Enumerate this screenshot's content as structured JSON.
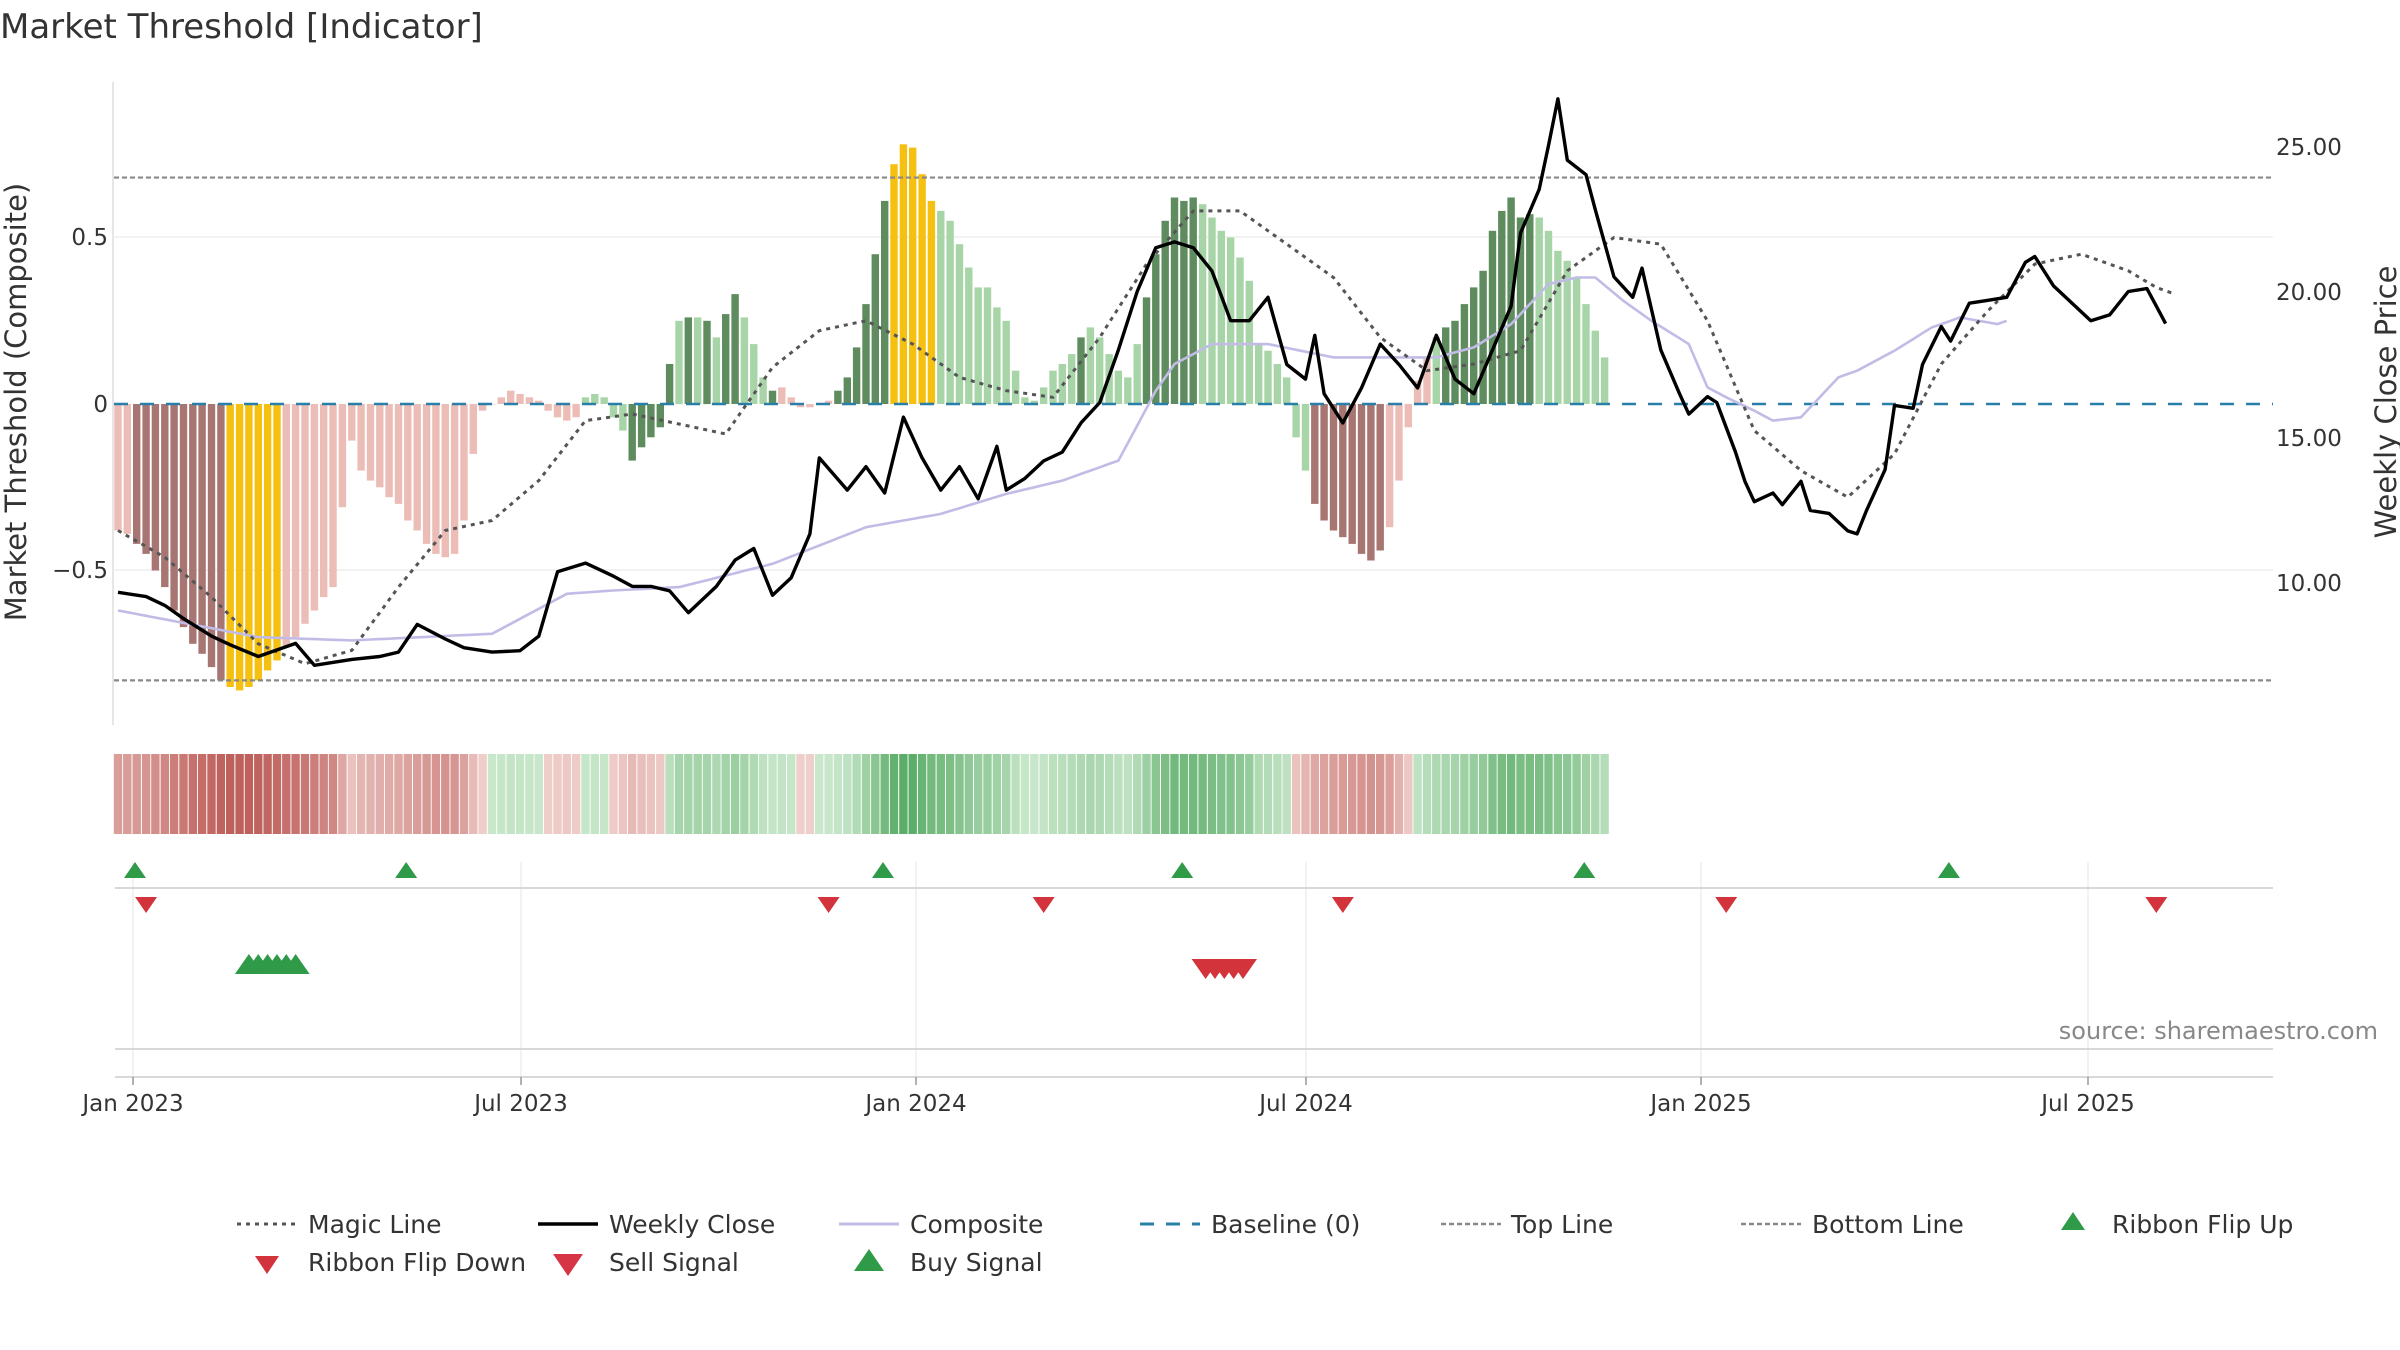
{
  "chart_data": {
    "type": "bar",
    "title": "Market Threshold [Indicator]",
    "ylabel_left": "Market Threshold (Composite)",
    "ylabel_right": "Weekly Close Price",
    "source": "source: sharemaestro.com",
    "x_tick_labels": [
      "Jan 2023",
      "Jul 2023",
      "Jan 2024",
      "Jul 2024",
      "Jan 2025",
      "Jul 2025"
    ],
    "left_tick_labels": [
      "0.5",
      "0",
      "−0.5"
    ],
    "right_tick_labels": [
      "25.00",
      "20.00",
      "15.00",
      "10.00"
    ],
    "ylim_left": [
      -0.97,
      0.97
    ],
    "ylim_right": [
      5.0,
      27.3
    ],
    "top_line": 0.68,
    "bottom_line": -0.83,
    "baseline": 0,
    "colors": {
      "strong_up": "#5e8c5e",
      "weak_up": "#a8d5a8",
      "strong_down": "#a77572",
      "weak_down": "#ecbdb7",
      "extreme": "#f5c010",
      "close_line": "#000000",
      "composite_line": "#c1bce6",
      "magic_line": "#555555",
      "baseline": "#2a7fa8",
      "threshold_lines": "#888888",
      "buy_marker": "#2f9a48",
      "sell_marker": "#d3343c"
    },
    "bar_values": [
      -0.38,
      -0.39,
      -0.42,
      -0.45,
      -0.5,
      -0.55,
      -0.62,
      -0.67,
      -0.72,
      -0.75,
      -0.79,
      -0.83,
      -0.85,
      -0.86,
      -0.85,
      -0.83,
      -0.8,
      -0.77,
      -0.73,
      -0.7,
      -0.66,
      -0.62,
      -0.58,
      -0.55,
      -0.31,
      -0.11,
      -0.2,
      -0.23,
      -0.25,
      -0.28,
      -0.3,
      -0.35,
      -0.38,
      -0.42,
      -0.45,
      -0.46,
      -0.45,
      -0.35,
      -0.15,
      -0.02,
      0,
      0.02,
      0.04,
      0.03,
      0.02,
      0.01,
      -0.02,
      -0.04,
      -0.05,
      -0.04,
      0.02,
      0.03,
      0.02,
      -0.04,
      -0.08,
      -0.17,
      -0.13,
      -0.1,
      -0.07,
      0.12,
      0.25,
      0.26,
      0.26,
      0.25,
      0.2,
      0.27,
      0.33,
      0.26,
      0.18,
      0.08,
      0.04,
      0.05,
      0.02,
      -0.01,
      -0.01,
      0,
      0.01,
      0.04,
      0.08,
      0.17,
      0.3,
      0.45,
      0.61,
      0.72,
      0.78,
      0.77,
      0.69,
      0.61,
      0.58,
      0.55,
      0.48,
      0.41,
      0.35,
      0.35,
      0.29,
      0.25,
      0.1,
      0.02,
      0.01,
      0.05,
      0.1,
      0.12,
      0.15,
      0.2,
      0.23,
      0.2,
      0.15,
      0.1,
      0.08,
      0.18,
      0.32,
      0.45,
      0.55,
      0.62,
      0.61,
      0.62,
      0.6,
      0.56,
      0.52,
      0.5,
      0.44,
      0.37,
      0.18,
      0.16,
      0.12,
      0.08,
      -0.1,
      -0.2,
      -0.3,
      -0.35,
      -0.38,
      -0.4,
      -0.42,
      -0.45,
      -0.47,
      -0.44,
      -0.37,
      -0.23,
      -0.07,
      0.07,
      0.14,
      0.2,
      0.23,
      0.25,
      0.3,
      0.35,
      0.4,
      0.52,
      0.58,
      0.62,
      0.56,
      0.57,
      0.56,
      0.52,
      0.46,
      0.43,
      0.38,
      0.3,
      0.22,
      0.14
    ],
    "bar_color_classes": [
      "weak_down",
      "weak_down",
      "strong_down",
      "strong_down",
      "strong_down",
      "strong_down",
      "strong_down",
      "strong_down",
      "strong_down",
      "strong_down",
      "strong_down",
      "strong_down",
      "extreme",
      "extreme",
      "extreme",
      "extreme",
      "extreme",
      "extreme",
      "weak_down",
      "weak_down",
      "weak_down",
      "weak_down",
      "weak_down",
      "weak_down",
      "weak_down",
      "weak_down",
      "weak_down",
      "weak_down",
      "weak_down",
      "weak_down",
      "weak_down",
      "weak_down",
      "weak_down",
      "weak_down",
      "weak_down",
      "weak_down",
      "weak_down",
      "weak_down",
      "weak_down",
      "weak_down",
      "weak_down",
      "weak_down",
      "weak_down",
      "weak_down",
      "weak_down",
      "weak_down",
      "weak_down",
      "weak_down",
      "weak_down",
      "weak_down",
      "weak_up",
      "weak_up",
      "weak_up",
      "weak_up",
      "weak_up",
      "strong_up",
      "strong_up",
      "strong_up",
      "strong_up",
      "strong_up",
      "weak_up",
      "strong_up",
      "weak_up",
      "strong_up",
      "weak_up",
      "strong_up",
      "strong_up",
      "weak_up",
      "weak_up",
      "weak_up",
      "strong_up",
      "weak_down",
      "weak_down",
      "weak_down",
      "weak_down",
      "weak_down",
      "weak_down",
      "strong_up",
      "strong_up",
      "strong_up",
      "strong_up",
      "strong_up",
      "strong_up",
      "extreme",
      "extreme",
      "extreme",
      "extreme",
      "extreme",
      "weak_up",
      "weak_up",
      "weak_up",
      "weak_up",
      "weak_up",
      "weak_up",
      "weak_up",
      "weak_up",
      "weak_up",
      "weak_up",
      "weak_up",
      "weak_up",
      "weak_up",
      "weak_up",
      "weak_up",
      "strong_up",
      "weak_up",
      "weak_up",
      "weak_up",
      "weak_up",
      "weak_up",
      "weak_up",
      "strong_up",
      "strong_up",
      "strong_up",
      "strong_up",
      "strong_up",
      "strong_up",
      "weak_up",
      "weak_up",
      "weak_up",
      "weak_up",
      "weak_up",
      "weak_up",
      "weak_up",
      "weak_up",
      "weak_up",
      "weak_up",
      "weak_up",
      "weak_up",
      "strong_down",
      "strong_down",
      "strong_down",
      "strong_down",
      "strong_down",
      "strong_down",
      "strong_down",
      "strong_down",
      "weak_down",
      "weak_down",
      "weak_down",
      "weak_down",
      "weak_down",
      "weak_up",
      "strong_up",
      "strong_up",
      "strong_up",
      "strong_up",
      "strong_up",
      "strong_up",
      "strong_up",
      "strong_up",
      "strong_up",
      "strong_up",
      "weak_up",
      "weak_up",
      "weak_up",
      "weak_up",
      "weak_up",
      "weak_up",
      "weak_up",
      "weak_up",
      "weak_up",
      "weak_up",
      "weak_up",
      "weak_up",
      "weak_up"
    ],
    "close_keypoints": [
      [
        0,
        9.7
      ],
      [
        3,
        9.55
      ],
      [
        5,
        9.25
      ],
      [
        7,
        8.8
      ],
      [
        10,
        8.2
      ],
      [
        12,
        7.9
      ],
      [
        15,
        7.5
      ],
      [
        19,
        7.95
      ],
      [
        21,
        7.2
      ],
      [
        25,
        7.4
      ],
      [
        28,
        7.5
      ],
      [
        30,
        7.65
      ],
      [
        32,
        8.6
      ],
      [
        35,
        8.1
      ],
      [
        37,
        7.8
      ],
      [
        40,
        7.65
      ],
      [
        43,
        7.7
      ],
      [
        45,
        8.2
      ],
      [
        47,
        10.4
      ],
      [
        50,
        10.7
      ],
      [
        52,
        10.4
      ],
      [
        53,
        10.25
      ],
      [
        55,
        9.9
      ],
      [
        57,
        9.9
      ],
      [
        59,
        9.75
      ],
      [
        61,
        9.0
      ],
      [
        64,
        9.9
      ],
      [
        66,
        10.8
      ],
      [
        68,
        11.2
      ],
      [
        70,
        9.6
      ],
      [
        72,
        10.2
      ],
      [
        74,
        11.7
      ],
      [
        75,
        14.3
      ],
      [
        78,
        13.2
      ],
      [
        80,
        14.0
      ],
      [
        82,
        13.1
      ],
      [
        84,
        15.7
      ],
      [
        86,
        14.3
      ],
      [
        88,
        13.2
      ],
      [
        90,
        14.0
      ],
      [
        92,
        12.9
      ],
      [
        94,
        14.7
      ],
      [
        95,
        13.2
      ],
      [
        97,
        13.6
      ],
      [
        99,
        14.2
      ],
      [
        101,
        14.5
      ],
      [
        103,
        15.5
      ],
      [
        105,
        16.2
      ],
      [
        107,
        18.0
      ],
      [
        109,
        20.0
      ],
      [
        111,
        21.5
      ],
      [
        113,
        21.7
      ],
      [
        115,
        21.5
      ],
      [
        117,
        20.7
      ],
      [
        119,
        19.0
      ],
      [
        121,
        19.0
      ],
      [
        123,
        19.8
      ],
      [
        125,
        17.5
      ],
      [
        127,
        17.0
      ],
      [
        128,
        18.5
      ],
      [
        129,
        16.5
      ],
      [
        131,
        15.5
      ],
      [
        133,
        16.7
      ],
      [
        135,
        18.2
      ],
      [
        137,
        17.5
      ],
      [
        139,
        16.7
      ],
      [
        141,
        18.5
      ],
      [
        143,
        17.0
      ],
      [
        145,
        16.5
      ],
      [
        147,
        18.0
      ],
      [
        149,
        19.5
      ],
      [
        150,
        22.0
      ],
      [
        152,
        23.5
      ],
      [
        153,
        25.0
      ],
      [
        154,
        26.6
      ],
      [
        155,
        24.5
      ],
      [
        157,
        24.0
      ],
      [
        158,
        22.8
      ],
      [
        160,
        20.5
      ],
      [
        162,
        19.8
      ],
      [
        163,
        20.8
      ],
      [
        164,
        19.4
      ],
      [
        165,
        18.0
      ],
      [
        167,
        16.5
      ],
      [
        168,
        15.8
      ],
      [
        170,
        16.4
      ],
      [
        171,
        16.2
      ],
      [
        173,
        14.5
      ],
      [
        174,
        13.5
      ],
      [
        175,
        12.8
      ],
      [
        177,
        13.1
      ],
      [
        178,
        12.7
      ],
      [
        180,
        13.5
      ],
      [
        181,
        12.5
      ],
      [
        183,
        12.4
      ],
      [
        185,
        11.8
      ],
      [
        186,
        11.7
      ],
      [
        187,
        12.5
      ],
      [
        189,
        13.9
      ],
      [
        190,
        16.1
      ],
      [
        192,
        16.0
      ],
      [
        193,
        17.5
      ],
      [
        195,
        18.8
      ],
      [
        196,
        18.3
      ],
      [
        198,
        19.6
      ],
      [
        200,
        19.7
      ],
      [
        202,
        19.8
      ],
      [
        204,
        21.0
      ],
      [
        205,
        21.2
      ],
      [
        207,
        20.2
      ],
      [
        209,
        19.6
      ],
      [
        211,
        19.0
      ],
      [
        213,
        19.2
      ],
      [
        215,
        20.0
      ],
      [
        217,
        20.1
      ],
      [
        218,
        19.5
      ],
      [
        219,
        18.9
      ]
    ],
    "composite_keypoints": [
      [
        0,
        -0.62
      ],
      [
        15,
        -0.7
      ],
      [
        25,
        -0.71
      ],
      [
        40,
        -0.69
      ],
      [
        48,
        -0.57
      ],
      [
        53,
        -0.56
      ],
      [
        60,
        -0.55
      ],
      [
        70,
        -0.48
      ],
      [
        80,
        -0.37
      ],
      [
        88,
        -0.33
      ],
      [
        95,
        -0.27
      ],
      [
        101,
        -0.23
      ],
      [
        107,
        -0.17
      ],
      [
        111,
        0.04
      ],
      [
        113,
        0.12
      ],
      [
        117,
        0.18
      ],
      [
        123,
        0.18
      ],
      [
        130,
        0.14
      ],
      [
        137,
        0.14
      ],
      [
        141,
        0.14
      ],
      [
        145,
        0.17
      ],
      [
        149,
        0.24
      ],
      [
        153,
        0.36
      ],
      [
        156,
        0.38
      ],
      [
        158,
        0.38
      ],
      [
        161,
        0.31
      ],
      [
        164,
        0.25
      ],
      [
        168,
        0.18
      ],
      [
        170,
        0.05
      ],
      [
        172,
        0.02
      ],
      [
        175,
        -0.02
      ],
      [
        177,
        -0.05
      ],
      [
        180,
        -0.04
      ],
      [
        182,
        0.02
      ],
      [
        184,
        0.08
      ],
      [
        186,
        0.1
      ],
      [
        190,
        0.16
      ],
      [
        194,
        0.23
      ],
      [
        197,
        0.26
      ],
      [
        199,
        0.25
      ],
      [
        201,
        0.24
      ],
      [
        202,
        0.25
      ]
    ],
    "magic_keypoints": [
      [
        0,
        -0.38
      ],
      [
        5,
        -0.46
      ],
      [
        10,
        -0.58
      ],
      [
        15,
        -0.72
      ],
      [
        20,
        -0.78
      ],
      [
        25,
        -0.74
      ],
      [
        30,
        -0.55
      ],
      [
        35,
        -0.38
      ],
      [
        40,
        -0.35
      ],
      [
        45,
        -0.23
      ],
      [
        50,
        -0.05
      ],
      [
        55,
        -0.03
      ],
      [
        60,
        -0.06
      ],
      [
        65,
        -0.09
      ],
      [
        70,
        0.11
      ],
      [
        75,
        0.22
      ],
      [
        80,
        0.25
      ],
      [
        85,
        0.18
      ],
      [
        90,
        0.08
      ],
      [
        95,
        0.04
      ],
      [
        100,
        0.02
      ],
      [
        105,
        0.2
      ],
      [
        110,
        0.42
      ],
      [
        115,
        0.58
      ],
      [
        120,
        0.58
      ],
      [
        125,
        0.48
      ],
      [
        130,
        0.38
      ],
      [
        135,
        0.2
      ],
      [
        140,
        0.1
      ],
      [
        145,
        0.12
      ],
      [
        150,
        0.16
      ],
      [
        155,
        0.4
      ],
      [
        160,
        0.5
      ],
      [
        165,
        0.48
      ],
      [
        170,
        0.25
      ],
      [
        175,
        -0.08
      ],
      [
        180,
        -0.2
      ],
      [
        185,
        -0.28
      ],
      [
        190,
        -0.15
      ],
      [
        195,
        0.12
      ],
      [
        200,
        0.28
      ],
      [
        205,
        0.42
      ],
      [
        210,
        0.45
      ],
      [
        215,
        0.4
      ],
      [
        218,
        0.35
      ],
      [
        220,
        0.33
      ]
    ],
    "ribbon_flip_up_weeks": [
      0,
      29,
      80,
      112,
      155,
      194
    ],
    "ribbon_flip_down_weeks": [
      3,
      76,
      99,
      131,
      172,
      218
    ],
    "buy_signal_weeks": [
      14,
      15,
      16,
      17,
      18,
      19
    ],
    "sell_signal_weeks": [
      116,
      117,
      118,
      119,
      120
    ],
    "legend": [
      "Magic Line",
      "Weekly Close",
      "Composite",
      "Baseline (0)",
      "Top Line",
      "Bottom Line",
      "Ribbon Flip Up",
      "Ribbon Flip Down",
      "Sell Signal",
      "Buy Signal"
    ],
    "legend_placement": "bottom"
  }
}
